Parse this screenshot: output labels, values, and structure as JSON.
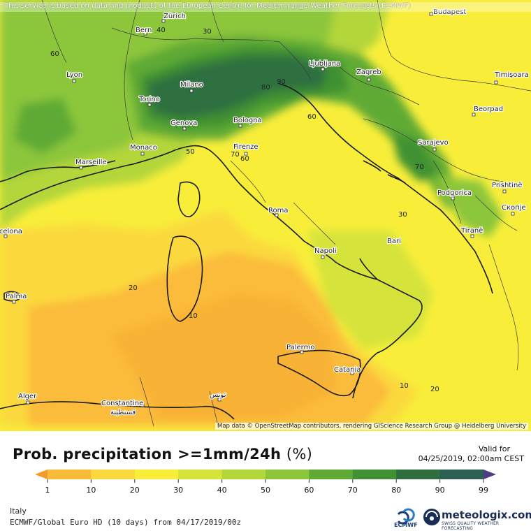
{
  "header": {
    "attribution": "This service is based on data and products of the European Centre for Medium-range Weather Forecasts (ECMWF)"
  },
  "map": {
    "osm_credit": "Map data © OpenStreetMap contributors, rendering GIScience Research Group @ Heidelberg University",
    "cities": [
      {
        "name": "Zürich"
      },
      {
        "name": "Bern"
      },
      {
        "name": "Budapest"
      },
      {
        "name": "Lyon"
      },
      {
        "name": "Milano"
      },
      {
        "name": "Ljubljana"
      },
      {
        "name": "Zagreb"
      },
      {
        "name": "Timișoara"
      },
      {
        "name": "Torino"
      },
      {
        "name": "Beorpad"
      },
      {
        "name": "Genova"
      },
      {
        "name": "Bologna"
      },
      {
        "name": "Monaco"
      },
      {
        "name": "Firenze"
      },
      {
        "name": "Sarajevo"
      },
      {
        "name": "Marseille"
      },
      {
        "name": "Podgorica"
      },
      {
        "name": "Prishtinë"
      },
      {
        "name": "Roma"
      },
      {
        "name": "Скопје"
      },
      {
        "name": "Barcelona"
      },
      {
        "name": "Tiranë"
      },
      {
        "name": "Napoli"
      },
      {
        "name": "Bari"
      },
      {
        "name": "Palma"
      },
      {
        "name": "Palermo"
      },
      {
        "name": "Catania"
      },
      {
        "name": "Alger"
      },
      {
        "name": "Constantine"
      },
      {
        "name": "قسنطينة"
      },
      {
        "name": "تونس"
      }
    ],
    "contour_labels": [
      "40",
      "30",
      "60",
      "80",
      "70",
      "60",
      "70",
      "50",
      "20",
      "10",
      "10",
      "20",
      "30",
      "90",
      "60"
    ]
  },
  "title": {
    "text": "Prob. precipitation >=1mm/24h",
    "unit": "(%)"
  },
  "valid": {
    "label": "Valid for",
    "time": "04/25/2019, 02:00am CEST"
  },
  "legend": {
    "ticks": [
      "1",
      "10",
      "20",
      "30",
      "40",
      "50",
      "60",
      "70",
      "80",
      "90",
      "99"
    ],
    "colors": [
      "#f49b2a",
      "#fbbb3a",
      "#fbd93e",
      "#f8ee3a",
      "#d5e33a",
      "#b3d63b",
      "#8cc63a",
      "#5faa34",
      "#3f9133",
      "#2f6f3f",
      "#2d5f52",
      "#4e3e86"
    ]
  },
  "footer": {
    "region": "Italy",
    "model_run": "ECMWF/Global Euro HD (10 days) from 04/17/2019/00z",
    "ecmwf": "ECMWF",
    "brand": "meteologix.com",
    "tagline": "SWISS QUALITY WEATHER FORECASTING"
  }
}
